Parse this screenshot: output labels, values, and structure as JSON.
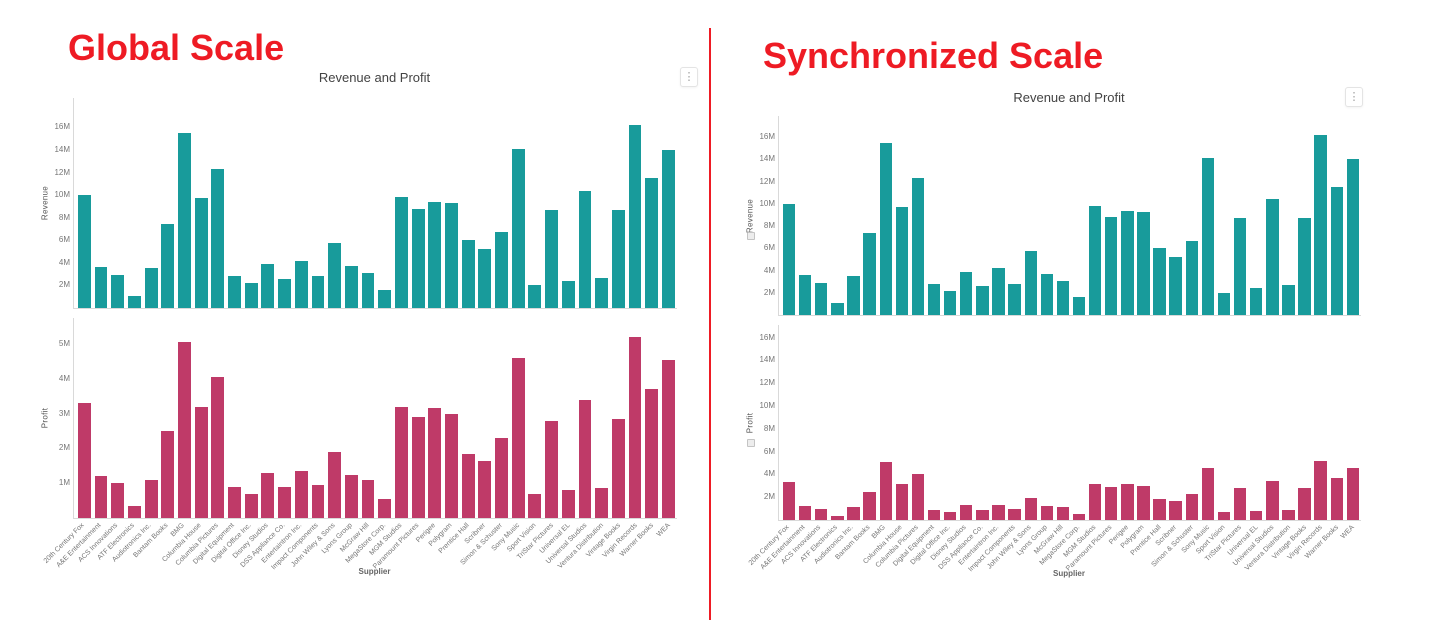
{
  "page": {
    "background": "#ffffff"
  },
  "panels": [
    {
      "heading": "Global Scale",
      "chart_title": "Revenue and Profit"
    },
    {
      "heading": "Synchronized Scale",
      "chart_title": "Revenue and Profit"
    }
  ],
  "icons": {
    "kebab_glyph": "⋮",
    "chart_menu": "kebab-vertical-dots",
    "sync_axis": "axis-sync-indicator"
  },
  "colors": {
    "revenue_bar": "#189b9b",
    "profit_bar": "#bf3a68",
    "heading_red": "#ee1b24",
    "divider_red": "#ee1b24",
    "axis_text": "#767676",
    "axis_line": "#d9d9d9",
    "chart_title_text": "#434343"
  },
  "chart_data": {
    "type": "bar",
    "xlabel": "Supplier",
    "grid": false,
    "legend": "none",
    "categories": [
      "20th Century Fox",
      "A&E Entertainment",
      "ACS Innovations",
      "ATF Electronics",
      "Audiotronics Inc.",
      "Bantam Books",
      "BMG",
      "Columbia House",
      "Columbia Pictures",
      "Digital Equipment",
      "Digital Office Inc.",
      "Disney Studios",
      "DSS Appliance Co.",
      "Entertaintron Inc.",
      "Impact Components",
      "John Wiley & Sons",
      "Lyons Group",
      "McGraw Hill",
      "MegaStore Corp.",
      "MGM Studios",
      "Paramount Pictures",
      "Perigee",
      "Polygram",
      "Prentice Hall",
      "Scribner",
      "Simon & Schuster",
      "Sony Music",
      "Sport Vision",
      "TriStar Pictures",
      "Universal EL",
      "Universal Studios",
      "Ventura Distribution",
      "Vintage Books",
      "Virgin Records",
      "Warner Books",
      "WEA"
    ],
    "panels": [
      {
        "name": "Global Scale",
        "charts": [
          {
            "ylabel": "Revenue",
            "unit": "M",
            "color": "#189b9b",
            "ymax": 18.6,
            "ytick_values": [
              2,
              4,
              6,
              8,
              10,
              12,
              14,
              16
            ],
            "ytick_labels": [
              "2M",
              "4M",
              "6M",
              "8M",
              "10M",
              "12M",
              "14M",
              "16M"
            ],
            "values": [
              10.0,
              3.6,
              2.9,
              1.1,
              3.5,
              7.4,
              15.5,
              9.7,
              12.3,
              2.8,
              2.2,
              3.9,
              2.6,
              4.2,
              2.8,
              5.8,
              3.7,
              3.1,
              1.6,
              9.8,
              8.8,
              9.4,
              9.3,
              6.0,
              5.2,
              6.7,
              14.1,
              2.0,
              8.7,
              2.4,
              10.4,
              2.7,
              8.7,
              16.2,
              11.5,
              14.0
            ]
          },
          {
            "ylabel": "Profit",
            "unit": "M",
            "color": "#bf3a68",
            "ymax": 5.75,
            "ytick_values": [
              1,
              2,
              3,
              4,
              5
            ],
            "ytick_labels": [
              "1M",
              "2M",
              "3M",
              "4M",
              "5M"
            ],
            "values": [
              3.3,
              1.2,
              1.0,
              0.35,
              1.1,
              2.5,
              5.05,
              3.2,
              4.05,
              0.9,
              0.7,
              1.3,
              0.9,
              1.35,
              0.95,
              1.9,
              1.25,
              1.1,
              0.55,
              3.2,
              2.9,
              3.15,
              3.0,
              1.85,
              1.65,
              2.3,
              4.6,
              0.7,
              2.8,
              0.8,
              3.4,
              0.85,
              2.85,
              5.2,
              3.7,
              4.55
            ]
          }
        ]
      },
      {
        "name": "Synchronized Scale",
        "charts": [
          {
            "ylabel": "Revenue",
            "unit": "M",
            "color": "#189b9b",
            "ymax": 17.9,
            "synchronized": true,
            "ytick_values": [
              2,
              4,
              6,
              8,
              10,
              12,
              14,
              16
            ],
            "ytick_labels": [
              "2M",
              "4M",
              "6M",
              "8M",
              "10M",
              "12M",
              "14M",
              "16M"
            ],
            "values": [
              10.0,
              3.6,
              2.9,
              1.1,
              3.5,
              7.4,
              15.5,
              9.7,
              12.3,
              2.8,
              2.2,
              3.9,
              2.6,
              4.2,
              2.8,
              5.8,
              3.7,
              3.1,
              1.6,
              9.8,
              8.8,
              9.4,
              9.3,
              6.0,
              5.2,
              6.7,
              14.1,
              2.0,
              8.7,
              2.4,
              10.4,
              2.7,
              8.7,
              16.2,
              11.5,
              14.0
            ]
          },
          {
            "ylabel": "Profit",
            "unit": "M",
            "color": "#bf3a68",
            "ymax": 17.1,
            "synchronized": true,
            "ytick_values": [
              2,
              4,
              6,
              8,
              10,
              12,
              14,
              16
            ],
            "ytick_labels": [
              "2M",
              "4M",
              "6M",
              "8M",
              "10M",
              "12M",
              "14M",
              "16M"
            ],
            "values": [
              3.3,
              1.2,
              1.0,
              0.35,
              1.1,
              2.5,
              5.05,
              3.2,
              4.05,
              0.9,
              0.7,
              1.3,
              0.9,
              1.35,
              0.95,
              1.9,
              1.25,
              1.1,
              0.55,
              3.2,
              2.9,
              3.15,
              3.0,
              1.85,
              1.65,
              2.3,
              4.6,
              0.7,
              2.8,
              0.8,
              3.4,
              0.85,
              2.85,
              5.2,
              3.7,
              4.55
            ]
          }
        ]
      }
    ]
  }
}
